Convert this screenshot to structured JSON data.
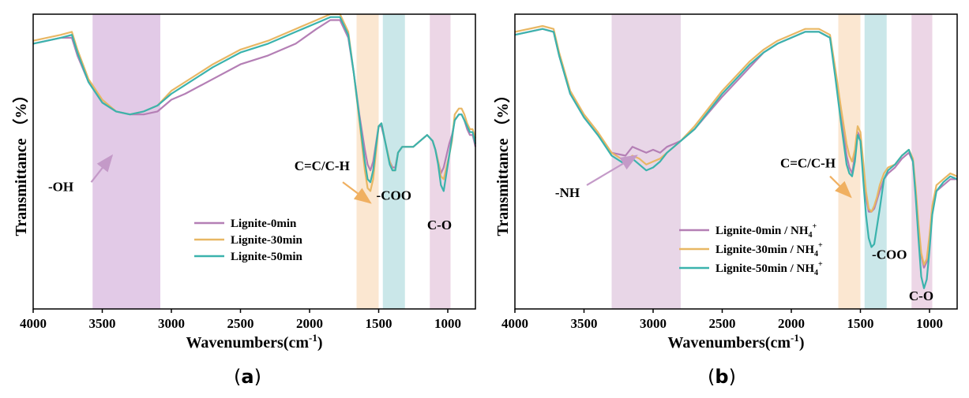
{
  "figure": {
    "caption_a": "a",
    "caption_b": "b"
  },
  "chart_data": [
    {
      "id": "a",
      "type": "line",
      "title": "",
      "xlabel": "Wavenumbers(cm",
      "xlabel_sup": "-1",
      "xlabel_end": ")",
      "ylabel": "Transmittance （%）",
      "xlim": [
        4000,
        800
      ],
      "ylim": [
        0,
        100
      ],
      "x_ticks": [
        4000,
        3500,
        3000,
        2500,
        2000,
        1500,
        1000
      ],
      "grid": false,
      "legend_position": "center-right",
      "bands": [
        {
          "from": 3570,
          "to": 3080,
          "color": "#d8b8df"
        },
        {
          "from": 1660,
          "to": 1500,
          "color": "#f9dfc2"
        },
        {
          "from": 1470,
          "to": 1310,
          "color": "#b8dfe2"
        },
        {
          "from": 1130,
          "to": 980,
          "color": "#e6c8de"
        }
      ],
      "annotations": [
        {
          "text": "-OH",
          "x": 3800,
          "y": 40,
          "arrow_from": [
            3580,
            43
          ],
          "arrow_to": [
            3430,
            52
          ]
        },
        {
          "text": "C=C/C-H",
          "x": 1910,
          "y": 47,
          "arrow_from": [
            1760,
            43
          ],
          "arrow_to": [
            1560,
            36
          ]
        },
        {
          "text": "-COO",
          "x": 1390,
          "y": 37
        },
        {
          "text": "C-O",
          "x": 1060,
          "y": 27
        }
      ],
      "series": [
        {
          "name": "Lignite-0min",
          "color": "#b47fb5",
          "x": [
            4000,
            3800,
            3720,
            3680,
            3600,
            3500,
            3400,
            3300,
            3200,
            3100,
            3000,
            2900,
            2700,
            2500,
            2300,
            2100,
            1950,
            1850,
            1780,
            1720,
            1680,
            1640,
            1600,
            1580,
            1560,
            1540,
            1520,
            1500,
            1480,
            1450,
            1420,
            1400,
            1380,
            1360,
            1330,
            1300,
            1250,
            1200,
            1150,
            1110,
            1090,
            1070,
            1050,
            1030,
            1010,
            990,
            970,
            950,
            920,
            900,
            880,
            860,
            840,
            820,
            800
          ],
          "y": [
            90,
            92,
            92,
            86,
            77,
            70,
            67,
            66,
            66,
            67,
            71,
            73,
            78,
            83,
            86,
            90,
            95,
            98,
            98,
            92,
            80,
            66,
            54,
            49,
            47,
            50,
            56,
            62,
            62,
            56,
            50,
            48,
            48,
            53,
            55,
            55,
            55,
            57,
            59,
            57,
            54,
            50,
            46,
            48,
            52,
            56,
            59,
            64,
            66,
            66,
            64,
            61,
            59,
            59,
            55
          ]
        },
        {
          "name": "Lignite-30min",
          "color": "#e8b764",
          "x": [
            4000,
            3800,
            3720,
            3680,
            3600,
            3500,
            3400,
            3300,
            3200,
            3100,
            3000,
            2900,
            2700,
            2500,
            2300,
            2100,
            1950,
            1850,
            1780,
            1720,
            1680,
            1640,
            1600,
            1580,
            1560,
            1540,
            1520,
            1500,
            1480,
            1450,
            1420,
            1400,
            1380,
            1360,
            1330,
            1300,
            1250,
            1200,
            1150,
            1110,
            1090,
            1070,
            1050,
            1030,
            1010,
            990,
            970,
            950,
            920,
            900,
            880,
            860,
            840,
            820,
            800
          ],
          "y": [
            91,
            93,
            94,
            88,
            78,
            71,
            67,
            66,
            67,
            69,
            74,
            77,
            83,
            88,
            91,
            95,
            98,
            100,
            100,
            94,
            80,
            64,
            47,
            41,
            40,
            44,
            53,
            62,
            63,
            56,
            50,
            47,
            47,
            53,
            55,
            55,
            55,
            57,
            59,
            57,
            54,
            50,
            45,
            44,
            48,
            52,
            57,
            66,
            68,
            68,
            66,
            63,
            61,
            61,
            58
          ]
        },
        {
          "name": "Lignite-50min",
          "color": "#3bb3ad",
          "x": [
            4000,
            3800,
            3720,
            3680,
            3600,
            3500,
            3400,
            3300,
            3200,
            3100,
            3000,
            2900,
            2700,
            2500,
            2300,
            2100,
            1950,
            1850,
            1780,
            1720,
            1680,
            1640,
            1600,
            1580,
            1560,
            1540,
            1520,
            1500,
            1480,
            1450,
            1420,
            1400,
            1380,
            1360,
            1330,
            1300,
            1250,
            1200,
            1150,
            1110,
            1090,
            1070,
            1050,
            1030,
            1010,
            990,
            970,
            950,
            920,
            900,
            880,
            860,
            840,
            820,
            800
          ],
          "y": [
            90,
            92,
            93,
            87,
            77,
            70,
            67,
            66,
            67,
            69,
            73,
            76,
            82,
            87,
            90,
            94,
            97,
            99,
            99,
            93,
            80,
            65,
            50,
            44,
            43,
            47,
            55,
            62,
            63,
            56,
            49,
            47,
            47,
            53,
            55,
            55,
            55,
            57,
            59,
            57,
            54,
            49,
            42,
            40,
            46,
            52,
            58,
            64,
            66,
            66,
            64,
            62,
            60,
            60,
            56
          ]
        }
      ]
    },
    {
      "id": "b",
      "type": "line",
      "title": "",
      "xlabel": "Wavenumbers(cm",
      "xlabel_sup": "-1",
      "xlabel_end": ")",
      "ylabel": "Transmittance （%）",
      "xlim": [
        4000,
        800
      ],
      "ylim": [
        0,
        100
      ],
      "x_ticks": [
        4000,
        3500,
        3000,
        2500,
        2000,
        1500,
        1000
      ],
      "grid": false,
      "legend_position": "bottom-center",
      "bands": [
        {
          "from": 3300,
          "to": 2800,
          "color": "#e0c8df"
        },
        {
          "from": 1660,
          "to": 1500,
          "color": "#f9dfc2"
        },
        {
          "from": 1470,
          "to": 1310,
          "color": "#b8dfe2"
        },
        {
          "from": 1130,
          "to": 980,
          "color": "#e6c8de"
        }
      ],
      "annotations": [
        {
          "text": "-NH",
          "x": 3620,
          "y": 38,
          "arrow_from": [
            3480,
            42
          ],
          "arrow_to": [
            3120,
            52
          ]
        },
        {
          "text": "C=C/C-H",
          "x": 1880,
          "y": 48,
          "arrow_from": [
            1720,
            45
          ],
          "arrow_to": [
            1570,
            38
          ]
        },
        {
          "text": "-COO",
          "x": 1290,
          "y": 17
        },
        {
          "text": "C-O",
          "x": 1060,
          "y": 3
        }
      ],
      "series": [
        {
          "name": "Lignite-0min / NH",
          "sub": "4",
          "sup": "+",
          "color": "#b47fb5",
          "x": [
            4000,
            3800,
            3720,
            3680,
            3600,
            3500,
            3400,
            3300,
            3200,
            3150,
            3100,
            3050,
            3000,
            2950,
            2900,
            2850,
            2800,
            2700,
            2500,
            2300,
            2200,
            2100,
            2000,
            1900,
            1800,
            1720,
            1680,
            1640,
            1600,
            1580,
            1560,
            1540,
            1520,
            1500,
            1480,
            1460,
            1440,
            1420,
            1400,
            1380,
            1360,
            1330,
            1300,
            1250,
            1200,
            1150,
            1120,
            1100,
            1080,
            1060,
            1040,
            1020,
            1000,
            980,
            950,
            900,
            850,
            800
          ],
          "y": [
            93,
            95,
            94,
            86,
            73,
            65,
            59,
            53,
            52,
            55,
            54,
            53,
            54,
            53,
            55,
            56,
            57,
            61,
            72,
            82,
            87,
            90,
            92,
            94,
            94,
            92,
            80,
            66,
            52,
            48,
            46,
            52,
            60,
            58,
            48,
            38,
            33,
            33,
            34,
            37,
            40,
            44,
            46,
            48,
            51,
            53,
            50,
            40,
            28,
            18,
            14,
            16,
            24,
            34,
            40,
            42,
            44,
            44
          ]
        },
        {
          "name": "Lignite-30min / NH",
          "sub": "4",
          "sup": "+",
          "color": "#e8b764",
          "x": [
            4000,
            3800,
            3720,
            3680,
            3600,
            3500,
            3400,
            3300,
            3200,
            3150,
            3100,
            3050,
            3000,
            2950,
            2900,
            2850,
            2800,
            2700,
            2500,
            2300,
            2200,
            2100,
            2000,
            1900,
            1800,
            1720,
            1680,
            1640,
            1600,
            1580,
            1560,
            1540,
            1520,
            1500,
            1480,
            1460,
            1440,
            1420,
            1400,
            1380,
            1360,
            1330,
            1300,
            1250,
            1200,
            1150,
            1120,
            1100,
            1080,
            1060,
            1040,
            1020,
            1000,
            980,
            950,
            900,
            850,
            800
          ],
          "y": [
            94,
            96,
            95,
            87,
            74,
            66,
            60,
            53,
            50,
            52,
            51,
            49,
            50,
            51,
            53,
            55,
            57,
            62,
            74,
            84,
            88,
            91,
            93,
            95,
            95,
            93,
            81,
            68,
            56,
            52,
            50,
            54,
            62,
            60,
            50,
            40,
            34,
            33,
            35,
            38,
            42,
            46,
            48,
            49,
            52,
            54,
            51,
            41,
            29,
            19,
            15,
            17,
            25,
            35,
            42,
            44,
            46,
            45
          ]
        },
        {
          "name": "Lignite-50min / NH",
          "sub": "4",
          "sup": "+",
          "color": "#3bb3ad",
          "x": [
            4000,
            3800,
            3720,
            3680,
            3600,
            3500,
            3400,
            3300,
            3200,
            3150,
            3100,
            3050,
            3000,
            2950,
            2900,
            2850,
            2800,
            2700,
            2500,
            2300,
            2200,
            2100,
            2000,
            1900,
            1800,
            1720,
            1680,
            1640,
            1600,
            1580,
            1560,
            1540,
            1520,
            1500,
            1480,
            1460,
            1440,
            1420,
            1400,
            1380,
            1360,
            1330,
            1300,
            1250,
            1200,
            1150,
            1120,
            1100,
            1080,
            1060,
            1040,
            1020,
            1000,
            980,
            950,
            900,
            850,
            800
          ],
          "y": [
            93,
            95,
            94,
            86,
            73,
            65,
            59,
            52,
            49,
            51,
            49,
            47,
            48,
            50,
            53,
            55,
            57,
            61,
            73,
            83,
            87,
            90,
            92,
            94,
            94,
            92,
            78,
            63,
            49,
            46,
            45,
            50,
            59,
            57,
            44,
            32,
            24,
            21,
            22,
            28,
            34,
            44,
            47,
            49,
            52,
            54,
            50,
            38,
            24,
            11,
            7,
            10,
            20,
            32,
            40,
            43,
            45,
            44
          ]
        }
      ]
    }
  ]
}
